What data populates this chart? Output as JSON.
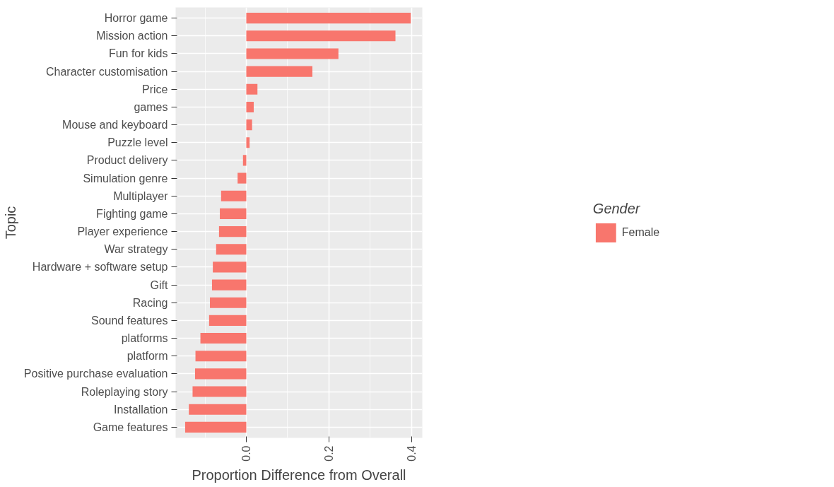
{
  "chart_data": {
    "type": "bar",
    "orientation": "horizontal",
    "xlabel": "Proportion Difference from Overall",
    "ylabel": "Topic",
    "legend_title": "Gender",
    "categories": [
      "Horror game",
      "Mission action",
      "Fun for kids",
      "Character customisation",
      "Price",
      "games",
      "Mouse and keyboard",
      "Puzzle level",
      "Product delivery",
      "Simulation genre",
      "Multiplayer",
      "Fighting game",
      "Player experience",
      "War strategy",
      "Hardware + software setup",
      "Gift",
      "Racing",
      "Sound features",
      "platforms",
      "platform",
      "Positive purchase evaluation",
      "Roleplaying story",
      "Installation",
      "Game features"
    ],
    "series": [
      {
        "name": "Female",
        "color": "#f8766d",
        "values": [
          0.398,
          0.361,
          0.223,
          0.16,
          0.027,
          0.018,
          0.014,
          0.008,
          -0.008,
          -0.021,
          -0.061,
          -0.064,
          -0.066,
          -0.073,
          -0.081,
          -0.083,
          -0.088,
          -0.09,
          -0.111,
          -0.123,
          -0.124,
          -0.13,
          -0.139,
          -0.148
        ]
      }
    ],
    "xlim": [
      -0.171,
      0.426
    ],
    "xticks": [
      {
        "value": 0,
        "label": "0.0"
      },
      {
        "value": 0.2,
        "label": "0.2"
      },
      {
        "value": 0.4,
        "label": "0.4"
      }
    ],
    "grid": true,
    "legend": "right"
  }
}
